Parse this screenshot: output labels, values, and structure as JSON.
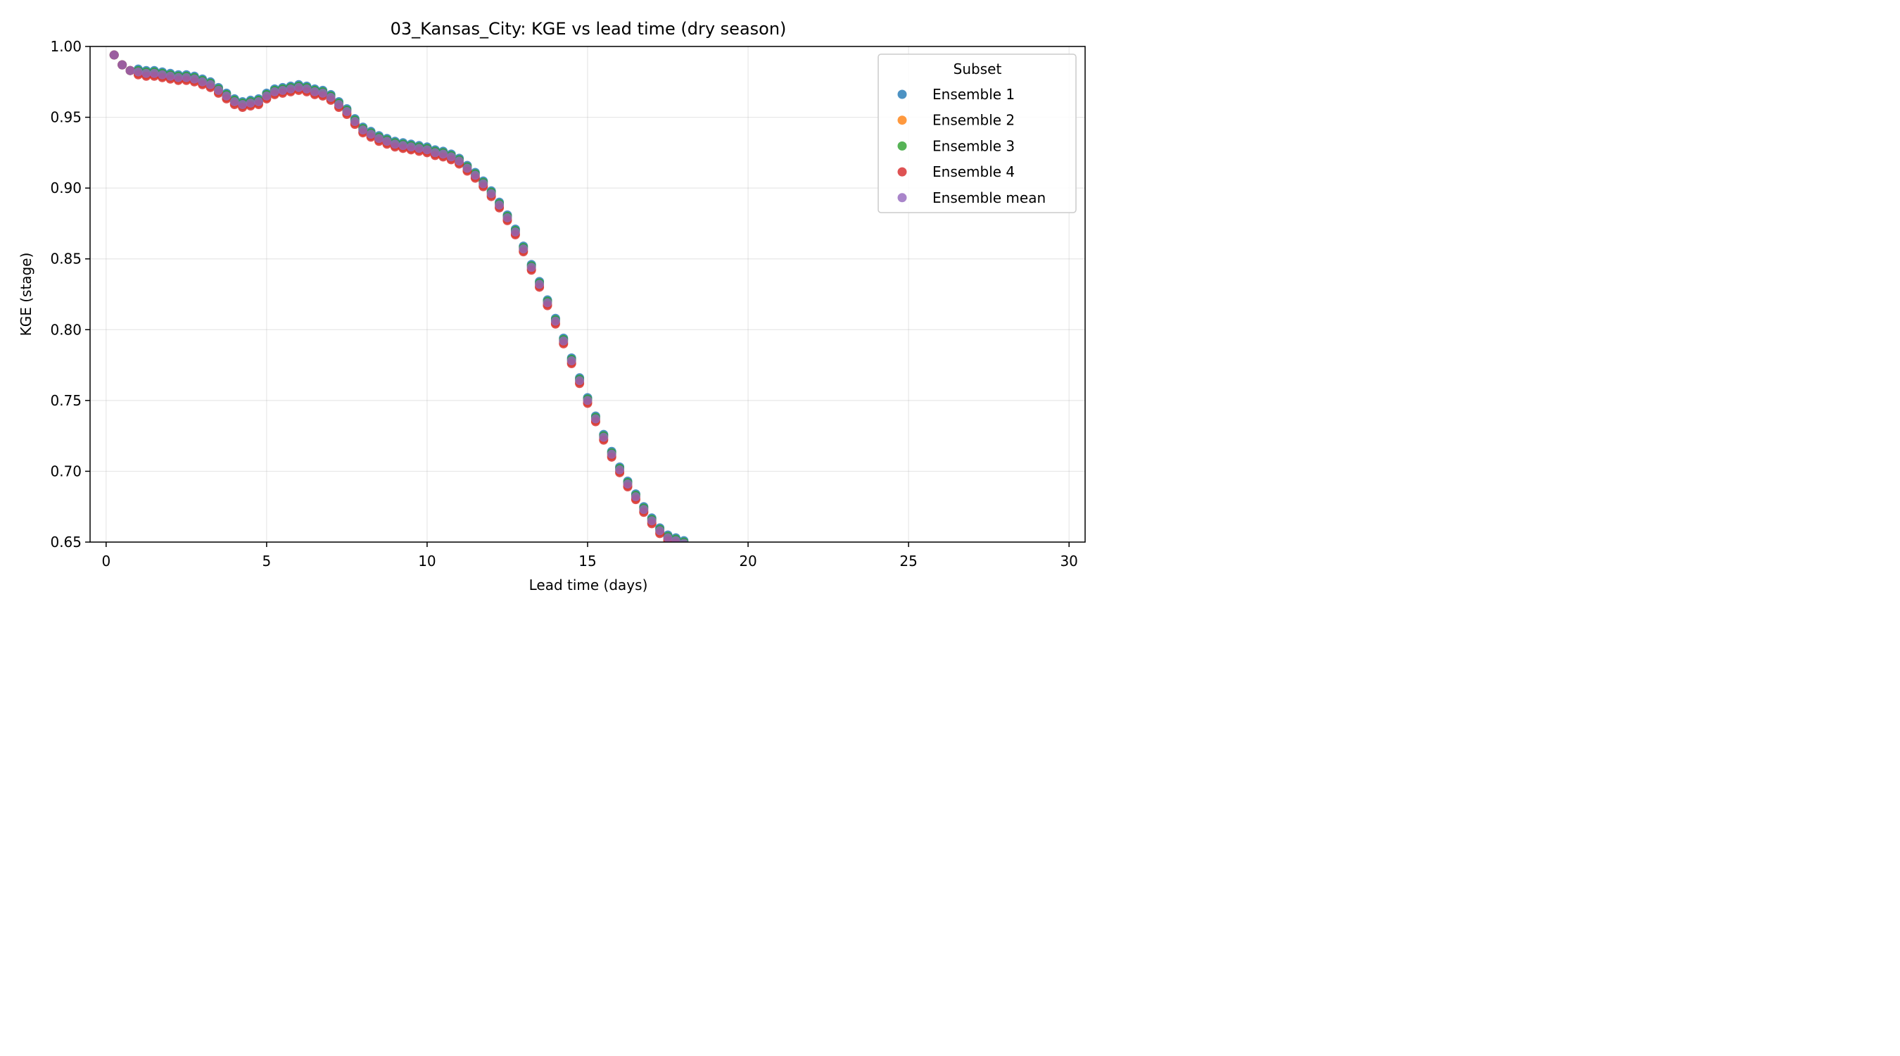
{
  "chart_data": {
    "type": "scatter",
    "title": "03_Kansas_City: KGE vs lead time (dry season)",
    "xlabel": "Lead time (days)",
    "ylabel": "KGE (stage)",
    "xlim": [
      -0.5,
      30.5
    ],
    "ylim": [
      0.65,
      1.0
    ],
    "xticks": [
      0,
      5,
      10,
      15,
      20,
      25,
      30
    ],
    "yticks": [
      0.65,
      0.7,
      0.75,
      0.8,
      0.85,
      0.9,
      0.95,
      1.0
    ],
    "ytick_labels": [
      "0.65",
      "0.70",
      "0.75",
      "0.80",
      "0.85",
      "0.90",
      "0.95",
      "1.00"
    ],
    "grid": true,
    "legend": {
      "title": "Subset",
      "placement": "top-right",
      "entries": [
        "Ensemble 1",
        "Ensemble 2",
        "Ensemble 3",
        "Ensemble 4",
        "Ensemble mean"
      ]
    },
    "x": [
      0.25,
      0.5,
      0.75,
      1.0,
      1.25,
      1.5,
      1.75,
      2.0,
      2.25,
      2.5,
      2.75,
      3.0,
      3.25,
      3.5,
      3.75,
      4.0,
      4.25,
      4.5,
      4.75,
      5.0,
      5.25,
      5.5,
      5.75,
      6.0,
      6.25,
      6.5,
      6.75,
      7.0,
      7.25,
      7.5,
      7.75,
      8.0,
      8.25,
      8.5,
      8.75,
      9.0,
      9.25,
      9.5,
      9.75,
      10.0,
      10.25,
      10.5,
      10.75,
      11.0,
      11.25,
      11.5,
      11.75,
      12.0,
      12.25,
      12.5,
      12.75,
      13.0,
      13.25,
      13.5,
      13.75,
      14.0,
      14.25,
      14.5,
      14.75,
      15.0,
      15.25,
      15.5,
      15.75,
      16.0,
      16.25,
      16.5,
      16.75,
      17.0,
      17.25,
      17.5,
      17.75,
      18.0
    ],
    "series": [
      {
        "name": "Ensemble 1",
        "color": "#1f77b4",
        "offset": 0.002
      },
      {
        "name": "Ensemble 2",
        "color": "#ff7f0e",
        "offset": -0.001
      },
      {
        "name": "Ensemble 3",
        "color": "#2ca02c",
        "offset": 0.001
      },
      {
        "name": "Ensemble 4",
        "color": "#d62728",
        "offset": -0.002
      },
      {
        "name": "Ensemble mean",
        "color": "#9467bd",
        "offset": 0.0
      }
    ],
    "mean_values": [
      0.994,
      0.987,
      0.983,
      0.982,
      0.981,
      0.981,
      0.98,
      0.979,
      0.978,
      0.978,
      0.977,
      0.975,
      0.973,
      0.969,
      0.965,
      0.961,
      0.959,
      0.96,
      0.961,
      0.965,
      0.968,
      0.969,
      0.97,
      0.971,
      0.97,
      0.968,
      0.967,
      0.964,
      0.959,
      0.954,
      0.947,
      0.941,
      0.938,
      0.935,
      0.933,
      0.931,
      0.93,
      0.929,
      0.928,
      0.927,
      0.925,
      0.924,
      0.922,
      0.919,
      0.914,
      0.909,
      0.903,
      0.896,
      0.888,
      0.879,
      0.869,
      0.857,
      0.844,
      0.832,
      0.819,
      0.806,
      0.792,
      0.778,
      0.764,
      0.75,
      0.737,
      0.724,
      0.712,
      0.701,
      0.691,
      0.682,
      0.673,
      0.665,
      0.658,
      0.653,
      0.651,
      0.649
    ]
  }
}
